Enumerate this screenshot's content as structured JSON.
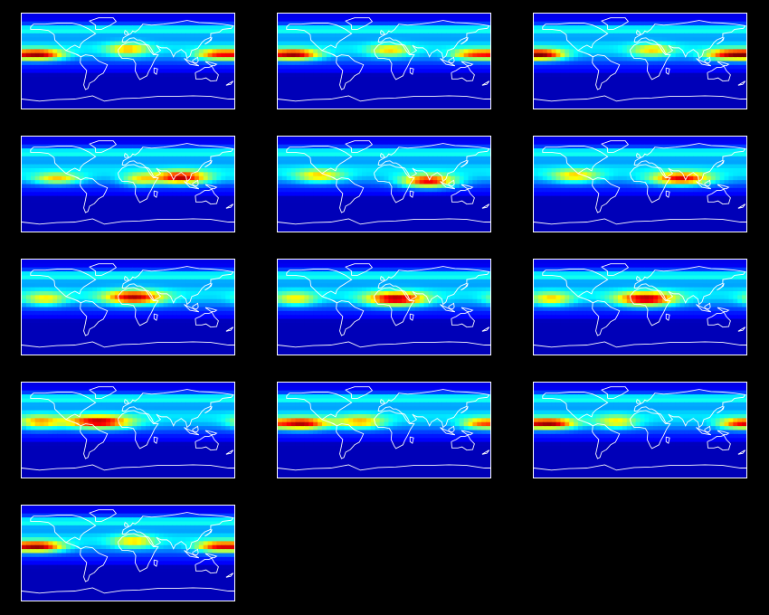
{
  "figure": {
    "description_visible_text": "",
    "colormap": "jet",
    "background_color": "#000000",
    "frame_color": "#ffffff",
    "coastline_color": "#ffffff",
    "panel_count": 13,
    "panel_layout": {
      "columns": 3,
      "rows": 5
    }
  },
  "panels": [
    {
      "hotspots": [
        {
          "lon": -150,
          "lat": 12,
          "strength": 1.0,
          "spread_lon": 40,
          "spread_lat": 10
        },
        {
          "lon": 150,
          "lat": 12,
          "strength": 0.75,
          "spread_lon": 35,
          "spread_lat": 10
        },
        {
          "lon": 0,
          "lat": 22,
          "strength": 0.55,
          "spread_lon": 35,
          "spread_lat": 12
        }
      ]
    },
    {
      "hotspots": [
        {
          "lon": -150,
          "lat": 12,
          "strength": 1.0,
          "spread_lon": 40,
          "spread_lat": 10
        },
        {
          "lon": 150,
          "lat": 12,
          "strength": 0.7,
          "spread_lon": 35,
          "spread_lat": 10
        },
        {
          "lon": 10,
          "lat": 20,
          "strength": 0.5,
          "spread_lon": 35,
          "spread_lat": 12
        }
      ]
    },
    {
      "hotspots": [
        {
          "lon": -160,
          "lat": 12,
          "strength": 0.85,
          "spread_lon": 35,
          "spread_lat": 10
        },
        {
          "lon": 150,
          "lat": 12,
          "strength": 0.9,
          "spread_lon": 40,
          "spread_lat": 10
        },
        {
          "lon": 20,
          "lat": 20,
          "strength": 0.5,
          "spread_lon": 35,
          "spread_lat": 12
        }
      ]
    },
    {
      "hotspots": [
        {
          "lon": 90,
          "lat": 12,
          "strength": 1.0,
          "spread_lon": 45,
          "spread_lat": 12
        },
        {
          "lon": -120,
          "lat": 10,
          "strength": 0.6,
          "spread_lon": 40,
          "spread_lat": 10
        },
        {
          "lon": 20,
          "lat": 8,
          "strength": 0.5,
          "spread_lon": 30,
          "spread_lat": 12
        }
      ]
    },
    {
      "hotspots": [
        {
          "lon": 75,
          "lat": 5,
          "strength": 1.0,
          "spread_lon": 45,
          "spread_lat": 12
        },
        {
          "lon": -110,
          "lat": 15,
          "strength": 0.55,
          "spread_lon": 40,
          "spread_lat": 12
        }
      ]
    },
    {
      "hotspots": [
        {
          "lon": 70,
          "lat": 10,
          "strength": 0.95,
          "spread_lon": 50,
          "spread_lat": 12
        },
        {
          "lon": -110,
          "lat": 15,
          "strength": 0.55,
          "spread_lon": 40,
          "spread_lat": 12
        }
      ]
    },
    {
      "hotspots": [
        {
          "lon": 10,
          "lat": 18,
          "strength": 0.95,
          "spread_lon": 50,
          "spread_lat": 13
        },
        {
          "lon": -140,
          "lat": 15,
          "strength": 0.5,
          "spread_lon": 35,
          "spread_lat": 12
        }
      ]
    },
    {
      "hotspots": [
        {
          "lon": 20,
          "lat": 15,
          "strength": 1.0,
          "spread_lon": 50,
          "spread_lat": 13
        },
        {
          "lon": -150,
          "lat": 15,
          "strength": 0.5,
          "spread_lon": 35,
          "spread_lat": 12
        }
      ]
    },
    {
      "hotspots": [
        {
          "lon": 10,
          "lat": 15,
          "strength": 1.0,
          "spread_lon": 50,
          "spread_lat": 13
        },
        {
          "lon": -150,
          "lat": 15,
          "strength": 0.55,
          "spread_lon": 35,
          "spread_lat": 12
        }
      ]
    },
    {
      "hotspots": [
        {
          "lon": -50,
          "lat": 15,
          "strength": 1.0,
          "spread_lon": 55,
          "spread_lat": 12
        },
        {
          "lon": -150,
          "lat": 15,
          "strength": 0.6,
          "spread_lon": 35,
          "spread_lat": 12
        }
      ]
    },
    {
      "hotspots": [
        {
          "lon": -140,
          "lat": 12,
          "strength": 1.0,
          "spread_lon": 45,
          "spread_lat": 11
        },
        {
          "lon": -40,
          "lat": 15,
          "strength": 0.6,
          "spread_lon": 40,
          "spread_lat": 12
        },
        {
          "lon": 160,
          "lat": 12,
          "strength": 0.55,
          "spread_lon": 30,
          "spread_lat": 10
        }
      ]
    },
    {
      "hotspots": [
        {
          "lon": -150,
          "lat": 12,
          "strength": 1.0,
          "spread_lon": 40,
          "spread_lat": 10
        },
        {
          "lon": 160,
          "lat": 12,
          "strength": 0.6,
          "spread_lon": 30,
          "spread_lat": 10
        },
        {
          "lon": -40,
          "lat": 15,
          "strength": 0.5,
          "spread_lon": 35,
          "spread_lat": 12
        }
      ]
    },
    {
      "hotspots": [
        {
          "lon": -150,
          "lat": 12,
          "strength": 1.0,
          "spread_lon": 40,
          "spread_lat": 10
        },
        {
          "lon": 150,
          "lat": 12,
          "strength": 0.8,
          "spread_lon": 35,
          "spread_lat": 10
        },
        {
          "lon": 10,
          "lat": 22,
          "strength": 0.5,
          "spread_lon": 35,
          "spread_lat": 12
        }
      ]
    }
  ]
}
